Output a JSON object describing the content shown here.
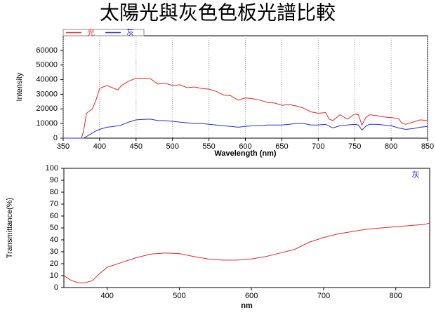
{
  "title": "太陽光與灰色色板光譜比較",
  "chart_data": [
    {
      "type": "line",
      "xlabel": "Wavelength (nm)",
      "ylabel": "Intensity",
      "xlim": [
        350,
        850
      ],
      "xticks": [
        350,
        400,
        450,
        500,
        550,
        600,
        650,
        700,
        750,
        800,
        850
      ],
      "ylim": [
        0,
        70000
      ],
      "yticks": [
        0,
        10000,
        20000,
        30000,
        40000,
        50000,
        60000
      ],
      "xgrid": true,
      "legend": "top-left",
      "series": [
        {
          "name": "光",
          "color": "#e8242a",
          "x": [
            350,
            375,
            378,
            382,
            390,
            395,
            400,
            410,
            420,
            425,
            430,
            440,
            450,
            460,
            470,
            480,
            490,
            500,
            510,
            520,
            530,
            540,
            550,
            560,
            570,
            580,
            590,
            600,
            610,
            620,
            630,
            640,
            650,
            660,
            670,
            680,
            690,
            700,
            710,
            715,
            720,
            730,
            740,
            750,
            755,
            760,
            765,
            770,
            780,
            790,
            800,
            810,
            815,
            820,
            830,
            840,
            850
          ],
          "values": [
            0,
            0,
            5000,
            17000,
            20000,
            26000,
            34000,
            36000,
            34000,
            33000,
            36000,
            39000,
            41000,
            41000,
            40500,
            37000,
            37500,
            36000,
            36500,
            34500,
            35000,
            34000,
            33500,
            32000,
            29500,
            29000,
            26000,
            27500,
            27000,
            26000,
            24500,
            24000,
            22500,
            23000,
            22000,
            20500,
            18000,
            17000,
            17500,
            13000,
            12000,
            16000,
            13000,
            16500,
            16000,
            9000,
            14000,
            16000,
            15500,
            14500,
            14000,
            13500,
            10000,
            9500,
            11000,
            12500,
            12000
          ]
        },
        {
          "name": "灰",
          "color": "#2a2ad0",
          "x": [
            350,
            378,
            385,
            395,
            400,
            410,
            420,
            430,
            440,
            450,
            460,
            470,
            480,
            490,
            500,
            510,
            520,
            530,
            540,
            550,
            560,
            570,
            580,
            590,
            600,
            610,
            620,
            630,
            640,
            650,
            660,
            670,
            680,
            690,
            700,
            710,
            720,
            730,
            740,
            750,
            755,
            760,
            765,
            770,
            780,
            790,
            800,
            810,
            820,
            830,
            840,
            850
          ],
          "values": [
            0,
            0,
            2000,
            5000,
            6000,
            7500,
            8000,
            9000,
            11000,
            12500,
            12800,
            13000,
            12000,
            12000,
            11500,
            11000,
            10500,
            10000,
            10000,
            9500,
            9000,
            8500,
            8000,
            7500,
            8000,
            8500,
            8500,
            9000,
            9000,
            9000,
            9500,
            10000,
            10000,
            9000,
            9000,
            9500,
            7000,
            8500,
            9000,
            9500,
            9000,
            5500,
            8000,
            9500,
            9500,
            9000,
            8500,
            7000,
            6000,
            6500,
            7500,
            8000
          ]
        }
      ]
    },
    {
      "type": "line",
      "xlabel": "nm",
      "ylabel": "Transmittance(%)",
      "annotation": "灰",
      "xlim": [
        340,
        847
      ],
      "xticks": [
        400,
        500,
        600,
        700,
        800
      ],
      "ylim": [
        0,
        100
      ],
      "yticks": [
        0,
        10,
        20,
        30,
        40,
        50,
        60,
        70,
        80,
        90,
        100
      ],
      "xgrid": false,
      "series": [
        {
          "color": "#e8242a",
          "x": [
            340,
            345,
            350,
            360,
            370,
            380,
            390,
            400,
            420,
            440,
            460,
            480,
            500,
            520,
            540,
            560,
            580,
            600,
            620,
            640,
            660,
            680,
            700,
            720,
            740,
            760,
            780,
            800,
            820,
            840,
            847
          ],
          "values": [
            10,
            8,
            6,
            4,
            4,
            6,
            12,
            17,
            21,
            25,
            28,
            29,
            28.5,
            26,
            24,
            23,
            23,
            24,
            26,
            29,
            32,
            38,
            42,
            45,
            47,
            49,
            50,
            51,
            52,
            53,
            54
          ]
        }
      ]
    }
  ]
}
